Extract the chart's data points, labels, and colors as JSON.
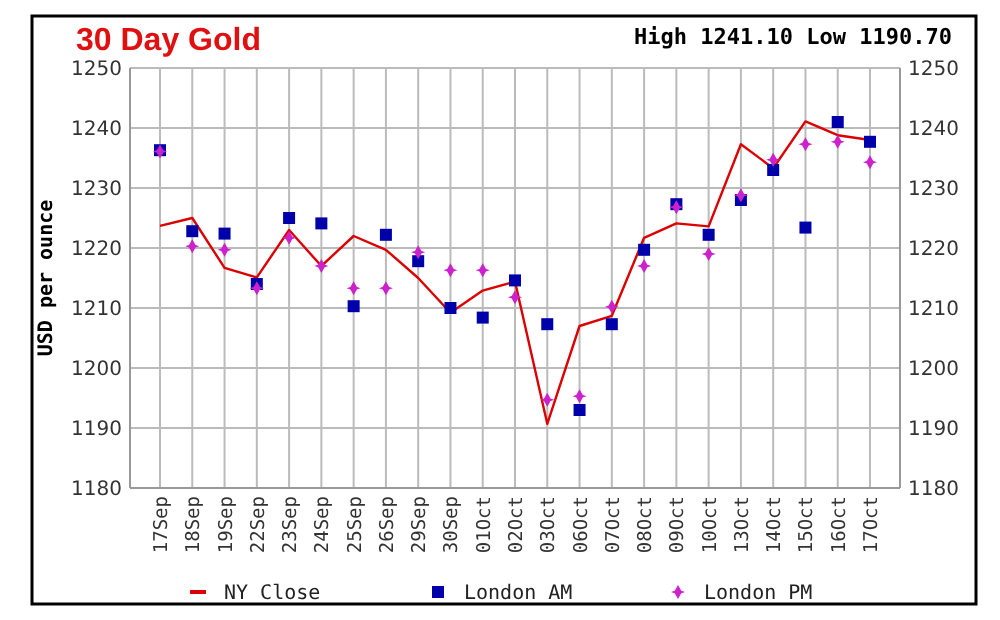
{
  "chart_data": {
    "type": "line",
    "title": "30 Day Gold",
    "subtitle": "High 1241.10 Low 1190.70",
    "ylabel": "USD per ounce",
    "categories": [
      "17Sep",
      "18Sep",
      "19Sep",
      "22Sep",
      "23Sep",
      "24Sep",
      "25Sep",
      "26Sep",
      "29Sep",
      "30Sep",
      "01Oct",
      "02Oct",
      "03Oct",
      "06Oct",
      "07Oct",
      "08Oct",
      "09Oct",
      "10Oct",
      "13Oct",
      "14Oct",
      "15Oct",
      "16Oct",
      "17Oct"
    ],
    "series": [
      {
        "name": "NY Close",
        "color": "#dd0000",
        "marker": "none",
        "values": [
          1223.7,
          1225,
          1216.7,
          1215.1,
          1223,
          1217,
          1222,
          1219.7,
          1215,
          1209.2,
          1212.9,
          1214.4,
          1190.7,
          1207,
          1208.7,
          1221.7,
          1224.1,
          1223.6,
          1237.3,
          1233.3,
          1241.1,
          1238.8,
          1238
        ]
      },
      {
        "name": "London AM",
        "type": "scatter",
        "color": "#0000aa",
        "marker": "square",
        "values": [
          1236.3,
          1222.8,
          1222.4,
          1214,
          1225,
          1224.1,
          1210.3,
          1222.2,
          1217.8,
          1210,
          1208.4,
          1214.6,
          1207.3,
          1193,
          1207.3,
          1219.7,
          1227.3,
          1222.2,
          1228,
          1233,
          1223.4,
          1241,
          1237.7
        ]
      },
      {
        "name": "London PM",
        "type": "scatter",
        "color": "#cc22cc",
        "marker": "diamond",
        "values": [
          1236.1,
          1220.3,
          1219.7,
          1213.3,
          1221.7,
          1217,
          1213.3,
          1213.3,
          1219.3,
          1216.3,
          1216.3,
          1211.8,
          1194.7,
          1195.3,
          1210.2,
          1217,
          1226.8,
          1219,
          1228.8,
          1234.7,
          1237.3,
          1237.7,
          1234.3
        ]
      }
    ],
    "ylim": [
      1180,
      1250
    ],
    "yticks": [
      1180,
      1190,
      1200,
      1210,
      1220,
      1230,
      1240,
      1250
    ],
    "y2lim": [
      1180,
      1250
    ],
    "y2ticks": [
      1180,
      1190,
      1200,
      1210,
      1220,
      1230,
      1240,
      1250
    ],
    "grid": true,
    "legend": "bottom"
  }
}
